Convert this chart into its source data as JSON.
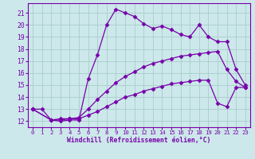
{
  "bg_color": "#cce8ea",
  "grid_color": "#aacccc",
  "line_color": "#7700aa",
  "marker": "D",
  "markersize": 2.5,
  "linewidth": 0.9,
  "xlim": [
    -0.5,
    23.5
  ],
  "ylim": [
    11.5,
    21.8
  ],
  "xlabel": "Windchill (Refroidissement éolien,°C)",
  "xlabel_fontsize": 5.8,
  "ytick_fontsize": 5.8,
  "xtick_fontsize": 5.2,
  "yticks": [
    12,
    13,
    14,
    15,
    16,
    17,
    18,
    19,
    20,
    21
  ],
  "xticks": [
    0,
    1,
    2,
    3,
    4,
    5,
    6,
    7,
    8,
    9,
    10,
    11,
    12,
    13,
    14,
    15,
    16,
    17,
    18,
    19,
    20,
    21,
    22,
    23
  ],
  "lines": [
    {
      "x": [
        0,
        1,
        2,
        3,
        4,
        5,
        6,
        7,
        8,
        9,
        10,
        11,
        12,
        13,
        14,
        15,
        16,
        17,
        18,
        19,
        20,
        21,
        22,
        23
      ],
      "y": [
        13.0,
        13.0,
        12.1,
        12.0,
        12.1,
        12.1,
        15.5,
        17.5,
        20.0,
        21.3,
        21.0,
        20.7,
        20.1,
        19.7,
        19.9,
        19.6,
        19.2,
        19.0,
        20.0,
        19.0,
        18.6,
        18.6,
        16.3,
        15.0
      ]
    },
    {
      "x": [
        0,
        2,
        3,
        4,
        5,
        6,
        7,
        8,
        9,
        10,
        11,
        12,
        13,
        14,
        15,
        16,
        17,
        18,
        19,
        20,
        21,
        22,
        23
      ],
      "y": [
        13.0,
        12.1,
        12.2,
        12.2,
        12.3,
        13.0,
        13.8,
        14.5,
        15.2,
        15.7,
        16.1,
        16.5,
        16.8,
        17.0,
        17.2,
        17.4,
        17.5,
        17.6,
        17.7,
        17.8,
        16.3,
        15.3,
        14.8
      ]
    },
    {
      "x": [
        0,
        2,
        3,
        4,
        5,
        6,
        7,
        8,
        9,
        10,
        11,
        12,
        13,
        14,
        15,
        16,
        17,
        18,
        19,
        20,
        21,
        22,
        23
      ],
      "y": [
        13.0,
        12.1,
        12.1,
        12.2,
        12.2,
        12.5,
        12.8,
        13.2,
        13.6,
        14.0,
        14.2,
        14.5,
        14.7,
        14.9,
        15.1,
        15.2,
        15.3,
        15.4,
        15.4,
        13.5,
        13.2,
        14.8,
        14.8
      ]
    }
  ]
}
